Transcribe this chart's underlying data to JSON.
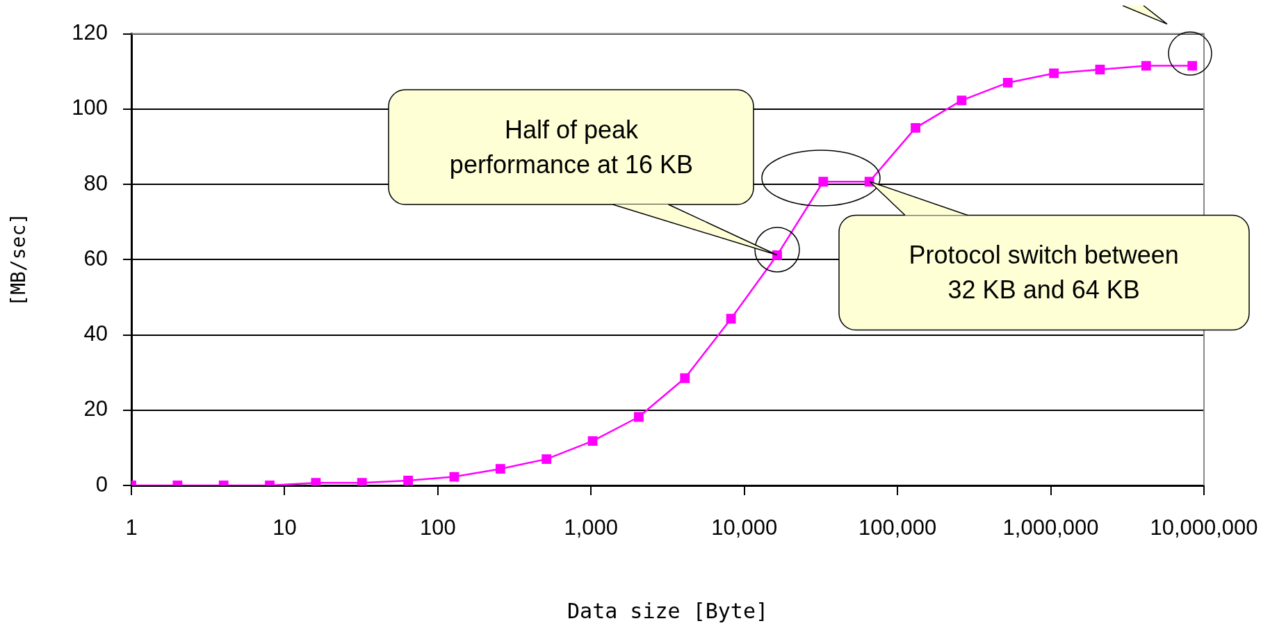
{
  "chart_data": {
    "type": "line",
    "xlabel": "Data size [Byte]",
    "ylabel": "[MB/sec]",
    "x": [
      1,
      2,
      4,
      8,
      16,
      32,
      64,
      128,
      256,
      512,
      1024,
      2048,
      4096,
      8192,
      16384,
      32768,
      65536,
      131072,
      262144,
      524288,
      1048576,
      2097152,
      4194304,
      8388608
    ],
    "series": [
      {
        "color": "#ff00ff",
        "values": [
          0,
          0,
          0,
          0,
          0.7,
          0.7,
          1.3,
          2.3,
          4.4,
          7,
          11.8,
          18.2,
          28.5,
          44.3,
          61.2,
          80.7,
          80.7,
          95,
          102.3,
          107,
          109.5,
          110.5,
          111.5,
          111.5
        ]
      }
    ],
    "log": "x",
    "xlim": [
      1,
      10000000
    ],
    "xticks": [
      1,
      10,
      100,
      {
        "value": 1000,
        "label": "1,000"
      },
      {
        "value": 10000,
        "label": "10,000"
      },
      {
        "value": 100000,
        "label": "100,000"
      },
      {
        "value": 1000000,
        "label": "1,000,000"
      },
      {
        "value": 10000000,
        "label": "10,000,000"
      }
    ],
    "ylim": [
      0,
      120
    ],
    "yticks": [
      0,
      20,
      40,
      60,
      80,
      100,
      120
    ],
    "grid": "y",
    "legend": false,
    "marker": "square",
    "line_style": "solid",
    "annotations": [
      {
        "text": "Half of peak\nperformance at 16 KB",
        "x": 16384,
        "y": 61.2
      },
      {
        "text": "Protocol switch between\n32 KB and 64 KB",
        "x": 65536,
        "y": 80.7
      }
    ]
  }
}
